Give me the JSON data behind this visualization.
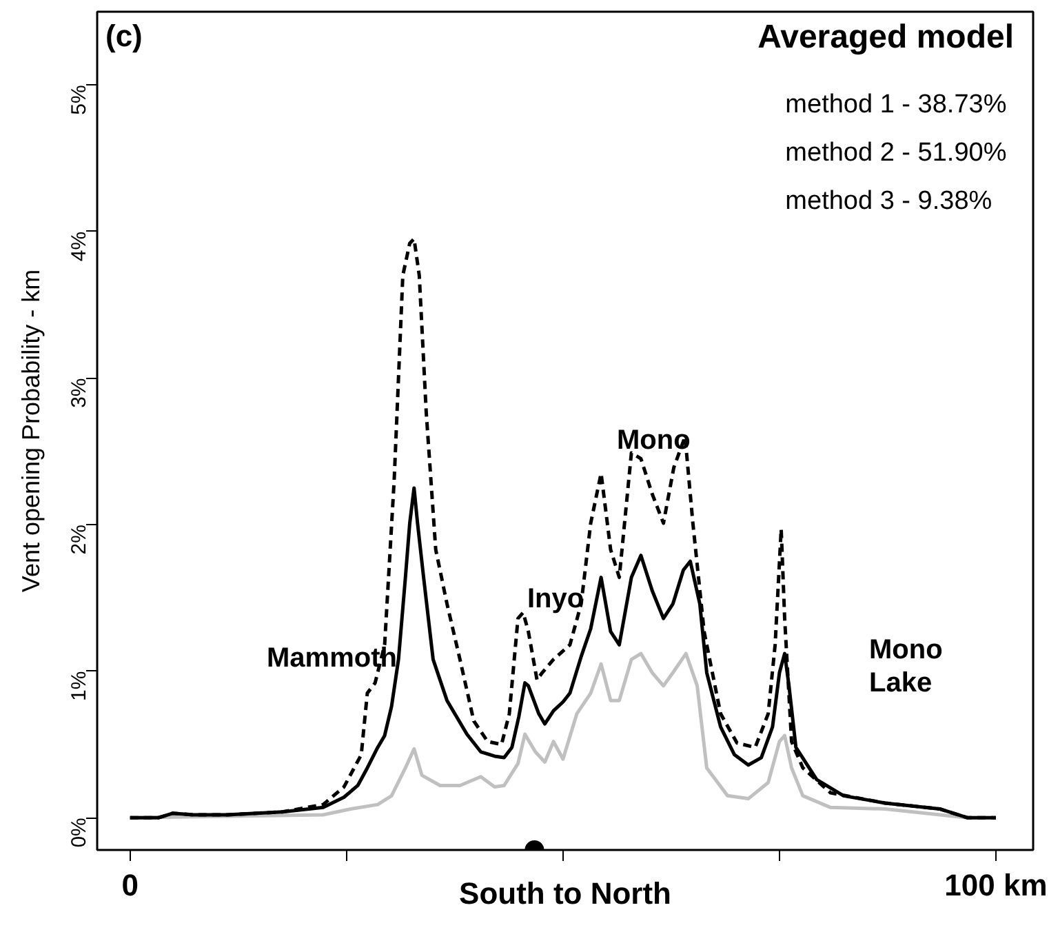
{
  "chart_data": {
    "type": "line",
    "xlabel": "South to North",
    "ylabel": "Vent opening Probability - km",
    "xlim": [
      -3.8,
      104.3
    ],
    "ylim": [
      -0.22,
      5.5
    ],
    "xticks": [
      {
        "value": 0,
        "label": "0"
      },
      {
        "value": 25,
        "label": null
      },
      {
        "value": 50,
        "label": null
      },
      {
        "value": 75,
        "label": null
      },
      {
        "value": 100,
        "label": "100 km"
      }
    ],
    "yticks": [
      {
        "value": 0,
        "label": "0%"
      },
      {
        "value": 1,
        "label": "1%"
      },
      {
        "value": 2,
        "label": "2%"
      },
      {
        "value": 3,
        "label": "3%"
      },
      {
        "value": 4,
        "label": "4%"
      },
      {
        "value": 5,
        "label": "5%"
      }
    ],
    "grid": false,
    "series": [
      {
        "color": "#c0c0c0",
        "line_style": "solid",
        "x": [
          0,
          22.3,
          25.5,
          28.6,
          30.2,
          31.8,
          32.8,
          33.7,
          35.8,
          38.1,
          40.5,
          42.1,
          43.2,
          44.8,
          45.6,
          46.8,
          47.9,
          48.9,
          50.0,
          51.6,
          53.2,
          54.4,
          55.5,
          56.5,
          57.9,
          59.0,
          60.3,
          61.6,
          62.7,
          64.2,
          65.5,
          66.6,
          69.0,
          71.4,
          73.7,
          75.0,
          75.6,
          76.4,
          77.7,
          80.9,
          87.2,
          96.7,
          100
        ],
        "values": [
          0,
          0.02,
          0.06,
          0.09,
          0.15,
          0.34,
          0.47,
          0.29,
          0.22,
          0.22,
          0.28,
          0.21,
          0.22,
          0.37,
          0.57,
          0.45,
          0.38,
          0.52,
          0.4,
          0.71,
          0.85,
          1.05,
          0.8,
          0.8,
          1.08,
          1.12,
          0.99,
          0.9,
          0.99,
          1.12,
          0.9,
          0.34,
          0.15,
          0.13,
          0.24,
          0.52,
          0.56,
          0.34,
          0.15,
          0.07,
          0.06,
          0,
          0
        ]
      },
      {
        "color": "#000000",
        "line_style": "dashed",
        "x": [
          0,
          3.3,
          4.9,
          7.3,
          11.2,
          17.6,
          22.3,
          24.7,
          26.7,
          27.4,
          28.3,
          29.4,
          30.5,
          31.5,
          32.3,
          32.8,
          33.4,
          34.2,
          35.3,
          36.6,
          38.1,
          39.7,
          41.3,
          42.9,
          43.8,
          44.8,
          45.4,
          46.0,
          47.0,
          47.6,
          48.9,
          50.8,
          52.1,
          53.2,
          54.4,
          55.5,
          56.5,
          57.9,
          59.0,
          60.3,
          61.6,
          62.8,
          64.1,
          65.0,
          66.3,
          68.2,
          70.1,
          72.2,
          73.7,
          74.5,
          75.2,
          75.6,
          76.4,
          77.7,
          80.9,
          87.2,
          93.5,
          96.7,
          100
        ],
        "values": [
          0,
          0,
          0.03,
          0.02,
          0.02,
          0.04,
          0.09,
          0.21,
          0.43,
          0.85,
          0.92,
          1.18,
          2.3,
          3.7,
          3.92,
          3.95,
          3.7,
          2.77,
          1.83,
          1.46,
          1.08,
          0.66,
          0.52,
          0.5,
          0.71,
          1.36,
          1.4,
          1.27,
          0.94,
          0.99,
          1.08,
          1.18,
          1.46,
          2.01,
          2.35,
          1.83,
          1.64,
          2.49,
          2.45,
          2.21,
          2.01,
          2.39,
          2.6,
          2.01,
          1.27,
          0.71,
          0.51,
          0.48,
          0.71,
          1.18,
          1.97,
          1.36,
          0.52,
          0.34,
          0.17,
          0.1,
          0.06,
          0,
          0
        ]
      },
      {
        "color": "#000000",
        "line_style": "solid",
        "x": [
          0,
          3.3,
          4.9,
          7.3,
          11.2,
          17.6,
          22.3,
          24.7,
          26.3,
          27.4,
          28.6,
          29.4,
          30.2,
          31.0,
          31.8,
          32.3,
          32.8,
          33.2,
          33.9,
          35.0,
          36.6,
          38.9,
          40.5,
          42.1,
          43.2,
          44.1,
          44.9,
          45.6,
          46.0,
          47.2,
          47.9,
          48.9,
          50.0,
          50.8,
          52.1,
          53.2,
          54.4,
          55.5,
          56.5,
          57.9,
          59.0,
          60.3,
          61.6,
          62.7,
          63.9,
          64.7,
          65.8,
          66.6,
          68.2,
          69.8,
          71.4,
          72.9,
          74.2,
          75.0,
          75.6,
          76.1,
          76.9,
          79.3,
          82.4,
          87.2,
          93.5,
          96.7,
          100
        ],
        "values": [
          0,
          0,
          0.03,
          0.02,
          0.02,
          0.04,
          0.07,
          0.14,
          0.22,
          0.34,
          0.48,
          0.56,
          0.76,
          1.08,
          1.64,
          2.01,
          2.25,
          2.01,
          1.64,
          1.08,
          0.8,
          0.57,
          0.45,
          0.42,
          0.41,
          0.48,
          0.69,
          0.92,
          0.9,
          0.71,
          0.64,
          0.73,
          0.79,
          0.85,
          1.1,
          1.29,
          1.64,
          1.27,
          1.18,
          1.64,
          1.79,
          1.55,
          1.36,
          1.46,
          1.69,
          1.75,
          1.46,
          0.99,
          0.62,
          0.43,
          0.36,
          0.41,
          0.62,
          0.99,
          1.12,
          0.9,
          0.48,
          0.26,
          0.15,
          0.1,
          0.06,
          0,
          0
        ]
      },
      {
        "type": "scatter",
        "color": "#000000",
        "x": [
          46.7
        ],
        "values": [
          -0.22
        ]
      }
    ],
    "annotations": [
      "(c)",
      "Averaged model",
      "method 1  - 38.73%",
      "method 2  - 51.90%",
      "method 3  -   9.38%",
      "Mammoth",
      "Inyo",
      "Mono",
      "Mono\nLake"
    ]
  }
}
